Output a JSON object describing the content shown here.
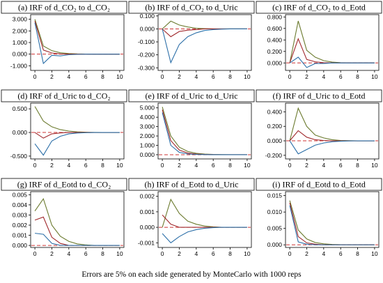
{
  "caption": "Errors are 5% on each side generated by MonteCarlo with 1000 reps",
  "colors": {
    "upper": "#6b7a2e",
    "irf": "#a0282c",
    "lower": "#2c6fa8",
    "zero": "#cc3333"
  },
  "chart_data": [
    {
      "type": "line",
      "title": "(a) IRF of d_CO₂ to d_CO₂",
      "x": [
        0,
        1,
        2,
        3,
        4,
        5,
        6,
        7,
        8,
        9,
        10
      ],
      "xticks": [
        0,
        2,
        4,
        6,
        8,
        10
      ],
      "xtick_labels": [
        "0",
        "2",
        "4",
        "6",
        "8",
        "10"
      ],
      "ylim": [
        -1.4,
        3.4
      ],
      "yticks": [
        -1.0,
        0.0,
        1.0,
        2.0,
        3.0
      ],
      "ytick_labels": [
        "-1.000",
        "0.000",
        "1.000",
        "2.000",
        "3.000"
      ],
      "series": [
        {
          "role": "upper",
          "values": [
            3.0,
            0.7,
            0.3,
            0.12,
            0.05,
            0.02,
            0.01,
            0.0,
            0.0,
            0.0,
            0.0
          ]
        },
        {
          "role": "irf",
          "values": [
            2.85,
            0.35,
            0.1,
            0.02,
            0.0,
            0.0,
            0.0,
            0.0,
            0.0,
            0.0,
            0.0
          ]
        },
        {
          "role": "lower",
          "values": [
            2.7,
            -0.8,
            -0.1,
            -0.15,
            -0.05,
            -0.02,
            0.0,
            0.0,
            0.0,
            0.0,
            0.0
          ]
        }
      ]
    },
    {
      "type": "line",
      "title": "(b) IRF of d_CO₂ to d_Uric",
      "x": [
        0,
        1,
        2,
        3,
        4,
        5,
        6,
        7,
        8,
        9,
        10
      ],
      "xticks": [
        0,
        2,
        4,
        6,
        8,
        10
      ],
      "xtick_labels": [
        "0",
        "2",
        "4",
        "6",
        "8",
        "10"
      ],
      "ylim": [
        -0.32,
        0.11
      ],
      "yticks": [
        -0.3,
        -0.2,
        -0.1,
        0.0,
        0.1
      ],
      "ytick_labels": [
        "-0.300",
        "-0.200",
        "-0.100",
        "0.000",
        "0.100"
      ],
      "series": [
        {
          "role": "upper",
          "values": [
            0.0,
            0.06,
            0.03,
            0.015,
            0.005,
            0.002,
            0.0,
            0.0,
            0.0,
            0.0,
            0.0
          ]
        },
        {
          "role": "irf",
          "values": [
            0.0,
            -0.06,
            -0.02,
            -0.01,
            -0.005,
            0.0,
            0.0,
            0.0,
            0.0,
            0.0,
            0.0
          ]
        },
        {
          "role": "lower",
          "values": [
            0.0,
            -0.26,
            -0.12,
            -0.06,
            -0.03,
            -0.012,
            -0.005,
            -0.002,
            0.0,
            0.0,
            0.0
          ]
        }
      ]
    },
    {
      "type": "line",
      "title": "(c) IRF of d_CO₂ to d_Eotd",
      "x": [
        0,
        1,
        2,
        3,
        4,
        5,
        6,
        7,
        8,
        9,
        10
      ],
      "xticks": [
        0,
        2,
        4,
        6,
        8,
        10
      ],
      "xtick_labels": [
        "0",
        "2",
        "4",
        "6",
        "8",
        "10"
      ],
      "ylim": [
        -0.13,
        0.84
      ],
      "yticks": [
        0.0,
        0.2,
        0.4,
        0.6,
        0.8
      ],
      "ytick_labels": [
        "0.000",
        "0.200",
        "0.400",
        "0.600",
        "0.800"
      ],
      "series": [
        {
          "role": "upper",
          "values": [
            0.0,
            0.73,
            0.22,
            0.1,
            0.04,
            0.015,
            0.005,
            0.0,
            0.0,
            0.0,
            0.0
          ]
        },
        {
          "role": "irf",
          "values": [
            0.0,
            0.42,
            0.06,
            0.02,
            0.005,
            0.0,
            0.0,
            0.0,
            0.0,
            0.0,
            0.0
          ]
        },
        {
          "role": "lower",
          "values": [
            0.0,
            0.1,
            -0.08,
            -0.01,
            -0.01,
            0.0,
            0.0,
            0.0,
            0.0,
            0.0,
            0.0
          ]
        }
      ]
    },
    {
      "type": "line",
      "title": "(d) IRF of d_Uric to d_CO₂",
      "x": [
        0,
        1,
        2,
        3,
        4,
        5,
        6,
        7,
        8,
        9,
        10
      ],
      "xticks": [
        0,
        2,
        4,
        6,
        8,
        10
      ],
      "xtick_labels": [
        "0",
        "2",
        "4",
        "6",
        "8",
        "10"
      ],
      "ylim": [
        -0.56,
        0.62
      ],
      "yticks": [
        -0.5,
        0.0,
        0.5
      ],
      "ytick_labels": [
        "-0.500",
        "0.000",
        "0.500"
      ],
      "series": [
        {
          "role": "upper",
          "values": [
            0.55,
            0.24,
            0.12,
            0.06,
            0.03,
            0.012,
            0.005,
            0.002,
            0.0,
            0.0,
            0.0
          ]
        },
        {
          "role": "irf",
          "values": [
            0.0,
            -0.12,
            -0.03,
            -0.01,
            0.0,
            0.0,
            0.0,
            0.0,
            0.0,
            0.0,
            0.0
          ]
        },
        {
          "role": "lower",
          "values": [
            -0.24,
            -0.48,
            -0.18,
            -0.08,
            -0.03,
            -0.012,
            -0.005,
            0.0,
            0.0,
            0.0,
            0.0
          ]
        }
      ]
    },
    {
      "type": "line",
      "title": "(e) IRF of d_Uric to d_Uric",
      "x": [
        0,
        1,
        2,
        3,
        4,
        5,
        6,
        7,
        8,
        9,
        10
      ],
      "xticks": [
        0,
        2,
        4,
        6,
        8,
        10
      ],
      "xtick_labels": [
        "0",
        "2",
        "4",
        "6",
        "8",
        "10"
      ],
      "ylim": [
        -0.45,
        5.5
      ],
      "yticks": [
        0.0,
        1.0,
        2.0,
        3.0,
        4.0,
        5.0
      ],
      "ytick_labels": [
        "0.000",
        "1.000",
        "2.000",
        "3.000",
        "4.000",
        "5.000"
      ],
      "series": [
        {
          "role": "upper",
          "values": [
            5.1,
            2.0,
            0.8,
            0.35,
            0.15,
            0.07,
            0.03,
            0.01,
            0.0,
            0.0,
            0.0
          ]
        },
        {
          "role": "irf",
          "values": [
            4.8,
            1.5,
            0.5,
            0.18,
            0.07,
            0.03,
            0.01,
            0.0,
            0.0,
            0.0,
            0.0
          ]
        },
        {
          "role": "lower",
          "values": [
            4.5,
            1.0,
            0.25,
            0.08,
            0.03,
            0.01,
            0.0,
            0.0,
            0.0,
            0.0,
            0.0
          ]
        }
      ]
    },
    {
      "type": "line",
      "title": "(f) IRF of d_Uric to d_Eotd",
      "x": [
        0,
        1,
        2,
        3,
        4,
        5,
        6,
        7,
        8,
        9,
        10
      ],
      "xticks": [
        0,
        2,
        4,
        6,
        8,
        10
      ],
      "xtick_labels": [
        "0",
        "2",
        "4",
        "6",
        "8",
        "10"
      ],
      "ylim": [
        -0.25,
        0.52
      ],
      "yticks": [
        -0.2,
        0.0,
        0.2,
        0.4
      ],
      "ytick_labels": [
        "-0.200",
        "0.000",
        "0.200",
        "0.400"
      ],
      "series": [
        {
          "role": "upper",
          "values": [
            0.0,
            0.45,
            0.2,
            0.08,
            0.04,
            0.015,
            0.005,
            0.002,
            0.0,
            0.0,
            0.0
          ]
        },
        {
          "role": "irf",
          "values": [
            0.0,
            0.14,
            0.05,
            0.015,
            0.005,
            0.0,
            0.0,
            0.0,
            0.0,
            0.0,
            0.0
          ]
        },
        {
          "role": "lower",
          "values": [
            0.0,
            -0.18,
            -0.12,
            -0.06,
            -0.03,
            -0.012,
            -0.005,
            -0.002,
            0.0,
            0.0,
            0.0
          ]
        }
      ]
    },
    {
      "type": "line",
      "title": "(g) IRF of d_Eotd to d_CO₂",
      "x": [
        0,
        1,
        2,
        3,
        4,
        5,
        6,
        7,
        8,
        9,
        10
      ],
      "xticks": [
        0,
        2,
        4,
        6,
        8,
        10
      ],
      "xtick_labels": [
        "0",
        "2",
        "4",
        "6",
        "8",
        "10"
      ],
      "ylim": [
        -0.0002,
        0.0053
      ],
      "yticks": [
        0.0,
        0.001,
        0.002,
        0.003,
        0.004,
        0.005
      ],
      "ytick_labels": [
        "0.000",
        "0.001",
        "0.002",
        "0.003",
        "0.004",
        "0.005"
      ],
      "series": [
        {
          "role": "upper",
          "values": [
            0.0034,
            0.0046,
            0.002,
            0.0009,
            0.0004,
            0.00015,
            5e-05,
            0.0,
            0.0,
            0.0,
            0.0
          ]
        },
        {
          "role": "irf",
          "values": [
            0.0025,
            0.0028,
            0.0008,
            0.0002,
            0.0,
            0.0,
            0.0,
            0.0,
            0.0,
            0.0,
            0.0
          ]
        },
        {
          "role": "lower",
          "values": [
            0.0012,
            0.0011,
            0.0002,
            0.0,
            0.0,
            0.0,
            0.0,
            0.0,
            0.0,
            0.0,
            0.0
          ]
        }
      ]
    },
    {
      "type": "line",
      "title": "(h) IRF of d_Eotd to d_Uric",
      "x": [
        0,
        1,
        2,
        3,
        4,
        5,
        6,
        7,
        8,
        9,
        10
      ],
      "xticks": [
        0,
        2,
        4,
        6,
        8,
        10
      ],
      "xtick_labels": [
        "0",
        "2",
        "4",
        "6",
        "8",
        "10"
      ],
      "ylim": [
        -0.0013,
        0.0023
      ],
      "yticks": [
        -0.001,
        0.0,
        0.001,
        0.002
      ],
      "ytick_labels": [
        "-0.001",
        "0.000",
        "0.001",
        "0.002"
      ],
      "series": [
        {
          "role": "upper",
          "values": [
            0.0,
            0.0018,
            0.0009,
            0.0004,
            0.0002,
            8e-05,
            3e-05,
            0.0,
            0.0,
            0.0,
            0.0
          ]
        },
        {
          "role": "irf",
          "values": [
            0.0008,
            0.0002,
            0.0,
            0.0,
            0.0,
            0.0,
            0.0,
            0.0,
            0.0,
            0.0,
            0.0
          ]
        },
        {
          "role": "lower",
          "values": [
            -0.0004,
            -0.001,
            -0.0006,
            -0.0003,
            -0.00015,
            -6e-05,
            -2e-05,
            0.0,
            0.0,
            0.0,
            0.0
          ]
        }
      ]
    },
    {
      "type": "line",
      "title": "(i) IRF of d_Eotd to d_Eotd",
      "x": [
        0,
        1,
        2,
        3,
        4,
        5,
        6,
        7,
        8,
        9,
        10
      ],
      "xticks": [
        0,
        2,
        4,
        6,
        8,
        10
      ],
      "xtick_labels": [
        "0",
        "2",
        "4",
        "6",
        "8",
        "10"
      ],
      "ylim": [
        -0.0008,
        0.0162
      ],
      "yticks": [
        0.0,
        0.005,
        0.01,
        0.015
      ],
      "ytick_labels": [
        "0.000",
        "0.005",
        "0.010",
        "0.015"
      ],
      "series": [
        {
          "role": "upper",
          "values": [
            0.0135,
            0.0045,
            0.0018,
            0.0007,
            0.0003,
            0.00012,
            5e-05,
            0.0,
            0.0,
            0.0,
            0.0
          ]
        },
        {
          "role": "irf",
          "values": [
            0.0128,
            0.0025,
            0.0006,
            0.0002,
            0.0,
            0.0,
            0.0,
            0.0,
            0.0,
            0.0,
            0.0
          ]
        },
        {
          "role": "lower",
          "values": [
            0.012,
            0.0009,
            0.0002,
            0.0,
            0.0,
            0.0,
            0.0,
            0.0,
            0.0,
            0.0,
            0.0
          ]
        }
      ]
    }
  ]
}
